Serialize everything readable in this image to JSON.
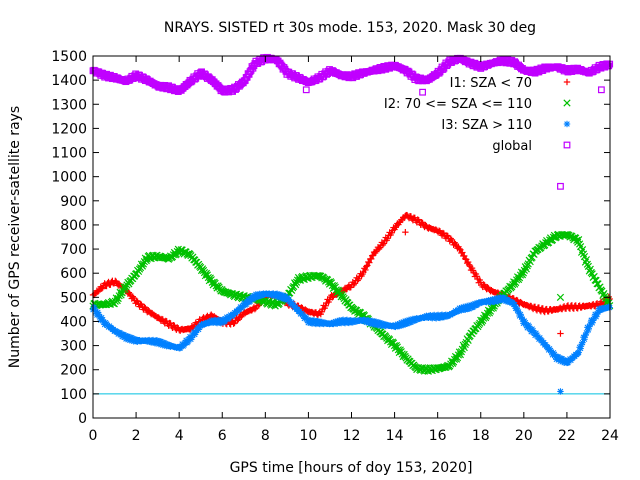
{
  "chart_data": {
    "type": "scatter",
    "title": "NRAYS. SISTED rt 30s mode. 153, 2020. Mask 30 deg",
    "xlabel": "GPS time [hours of doy 153, 2020]",
    "ylabel": "Number of GPS receiver-satellite rays",
    "xlim": [
      0,
      24
    ],
    "ylim": [
      0,
      1500
    ],
    "xticks": [
      0,
      2,
      4,
      6,
      8,
      10,
      12,
      14,
      16,
      18,
      20,
      22,
      24
    ],
    "yticks": [
      0,
      100,
      200,
      300,
      400,
      500,
      600,
      700,
      800,
      900,
      1000,
      1100,
      1200,
      1300,
      1400,
      1500
    ],
    "grid": false,
    "legend_position": "top-right",
    "threshold_line": {
      "y": 100,
      "color": "#00c0e0"
    },
    "series": [
      {
        "name": "I1: SZA < 70",
        "marker": "+",
        "color": "#ff0000",
        "x": [
          0,
          0.5,
          1,
          1.5,
          2,
          2.5,
          3,
          3.5,
          4,
          4.5,
          5,
          5.5,
          6,
          6.5,
          7,
          7.5,
          8,
          8.5,
          9,
          9.5,
          10,
          10.5,
          11,
          11.5,
          12,
          12.5,
          13,
          13.5,
          14,
          14.5,
          15,
          15.5,
          16,
          16.5,
          17,
          17.5,
          18,
          18.5,
          19,
          19.5,
          20,
          20.5,
          21,
          21.5,
          22,
          22.5,
          23,
          23.5,
          24
        ],
        "values": [
          510,
          550,
          565,
          530,
          480,
          445,
          415,
          390,
          365,
          370,
          405,
          425,
          395,
          395,
          435,
          455,
          505,
          510,
          475,
          460,
          440,
          430,
          500,
          525,
          550,
          600,
          680,
          730,
          790,
          840,
          820,
          790,
          775,
          745,
          700,
          625,
          555,
          525,
          510,
          490,
          470,
          455,
          445,
          450,
          460,
          460,
          465,
          470,
          500
        ]
      },
      {
        "name": "I2: 70 <= SZA <= 110",
        "marker": "x",
        "color": "#00c000",
        "x": [
          0,
          0.5,
          1,
          1.5,
          2,
          2.5,
          3,
          3.5,
          4,
          4.5,
          5,
          5.5,
          6,
          6.5,
          7,
          7.5,
          8,
          8.5,
          9,
          9.5,
          10,
          10.5,
          11,
          11.5,
          12,
          12.5,
          13,
          13.5,
          14,
          14.5,
          15,
          15.5,
          16,
          16.5,
          17,
          17.5,
          18,
          18.5,
          19,
          19.5,
          20,
          20.5,
          21,
          21.5,
          22,
          22.5,
          23,
          23.5,
          24
        ],
        "values": [
          470,
          470,
          480,
          545,
          600,
          665,
          670,
          660,
          695,
          675,
          620,
          565,
          525,
          510,
          500,
          495,
          480,
          470,
          505,
          575,
          585,
          590,
          560,
          510,
          455,
          425,
          385,
          340,
          300,
          250,
          205,
          200,
          205,
          215,
          265,
          345,
          400,
          455,
          510,
          555,
          610,
          690,
          725,
          755,
          760,
          735,
          620,
          540,
          460
        ]
      },
      {
        "name": "I3: SZA > 110",
        "marker": "*",
        "color": "#0080ff",
        "x": [
          0,
          0.5,
          1,
          1.5,
          2,
          2.5,
          3,
          3.5,
          4,
          4.5,
          5,
          5.5,
          6,
          6.5,
          7,
          7.5,
          8,
          8.5,
          9,
          9.5,
          10,
          10.5,
          11,
          11.5,
          12,
          12.5,
          13,
          13.5,
          14,
          14.5,
          15,
          15.5,
          16,
          16.5,
          17,
          17.5,
          18,
          18.5,
          19,
          19.5,
          20,
          20.5,
          21,
          21.5,
          22,
          22.5,
          23,
          23.5,
          24
        ],
        "values": [
          455,
          395,
          360,
          335,
          320,
          320,
          315,
          300,
          290,
          330,
          385,
          400,
          400,
          430,
          470,
          505,
          515,
          510,
          495,
          445,
          400,
          395,
          390,
          400,
          400,
          405,
          395,
          385,
          380,
          395,
          410,
          420,
          420,
          425,
          450,
          460,
          480,
          485,
          495,
          475,
          395,
          350,
          300,
          250,
          230,
          270,
          380,
          450,
          460
        ]
      },
      {
        "name": "global",
        "marker": "square",
        "color": "#c000ff",
        "x": [
          0,
          0.5,
          1,
          1.5,
          2,
          2.5,
          3,
          3.5,
          4,
          4.5,
          5,
          5.5,
          6,
          6.5,
          7,
          7.5,
          8,
          8.5,
          9,
          9.5,
          10,
          10.5,
          11,
          11.5,
          12,
          12.5,
          13,
          13.5,
          14,
          14.5,
          15,
          15.5,
          16,
          16.5,
          17,
          17.5,
          18,
          18.5,
          19,
          19.5,
          20,
          20.5,
          21,
          21.5,
          22,
          22.5,
          23,
          23.5,
          24
        ],
        "values": [
          1440,
          1420,
          1410,
          1395,
          1420,
          1400,
          1375,
          1370,
          1355,
          1395,
          1430,
          1400,
          1355,
          1360,
          1395,
          1470,
          1490,
          1485,
          1430,
          1410,
          1390,
          1410,
          1440,
          1420,
          1415,
          1430,
          1440,
          1450,
          1460,
          1440,
          1405,
          1400,
          1430,
          1475,
          1490,
          1470,
          1455,
          1470,
          1480,
          1475,
          1440,
          1435,
          1450,
          1455,
          1440,
          1445,
          1430,
          1455,
          1465
        ]
      }
    ],
    "outliers": [
      {
        "series": "I1: SZA < 70",
        "x": 14.5,
        "y": 770
      },
      {
        "series": "I1: SZA < 70",
        "x": 21.7,
        "y": 350
      },
      {
        "series": "I2: 70 <= SZA <= 110",
        "x": 21.7,
        "y": 500
      },
      {
        "series": "I3: SZA > 110",
        "x": 21.7,
        "y": 110
      },
      {
        "series": "global",
        "x": 21.7,
        "y": 960
      },
      {
        "series": "global",
        "x": 23.6,
        "y": 1360
      },
      {
        "series": "global",
        "x": 9.9,
        "y": 1360
      },
      {
        "series": "global",
        "x": 15.3,
        "y": 1350
      }
    ]
  }
}
